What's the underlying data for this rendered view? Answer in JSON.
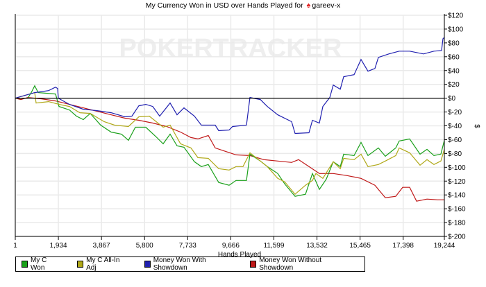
{
  "title": {
    "prefix": "My Currency Won in USD over Hands Played for",
    "player": "gareev-x",
    "icon": "pokerstars-spade-icon"
  },
  "watermark": "POKERTRACKER",
  "chart_data": {
    "type": "line",
    "title": "My Currency Won in USD over Hands Played for gareev-x",
    "xlabel": "Hands Played",
    "ylabel": "$",
    "xlim": [
      1,
      19244
    ],
    "ylim": [
      -200,
      120
    ],
    "x_ticks": [
      "1",
      "1,934",
      "3,867",
      "5,800",
      "7,733",
      "9,666",
      "11,599",
      "13,532",
      "15,465",
      "17,398",
      "19,244"
    ],
    "x_tick_values": [
      1,
      1934,
      3867,
      5800,
      7733,
      9666,
      11599,
      13532,
      15465,
      17398,
      19244
    ],
    "y_ticks": [
      "$120",
      "$100",
      "$80",
      "$60",
      "$40",
      "$20",
      "$0",
      "$-20",
      "$-40",
      "$-60",
      "$-80",
      "$-100",
      "$-120",
      "$-140",
      "$-160",
      "$-180",
      "$-200"
    ],
    "y_tick_values": [
      120,
      100,
      80,
      60,
      40,
      20,
      0,
      -20,
      -40,
      -60,
      -80,
      -100,
      -120,
      -140,
      -160,
      -180,
      -200
    ],
    "grid": true,
    "legend_position": "bottom-left",
    "series": [
      {
        "name": "My C Won",
        "color": "#1aa01a",
        "points": [
          [
            1,
            0
          ],
          [
            561,
            0
          ],
          [
            717,
            8
          ],
          [
            873,
            18
          ],
          [
            1029,
            8
          ],
          [
            1807,
            6
          ],
          [
            1963,
            -12
          ],
          [
            2430,
            -17
          ],
          [
            2741,
            -26
          ],
          [
            3053,
            -31
          ],
          [
            3364,
            -22
          ],
          [
            3831,
            -39
          ],
          [
            4298,
            -49
          ],
          [
            4765,
            -52
          ],
          [
            5077,
            -61
          ],
          [
            5388,
            -42
          ],
          [
            5856,
            -42
          ],
          [
            6323,
            -56
          ],
          [
            6634,
            -66
          ],
          [
            6945,
            -52
          ],
          [
            7257,
            -69
          ],
          [
            7568,
            -71
          ],
          [
            8035,
            -92
          ],
          [
            8347,
            -99
          ],
          [
            8658,
            -96
          ],
          [
            9125,
            -122
          ],
          [
            9592,
            -126
          ],
          [
            9903,
            -119
          ],
          [
            10370,
            -119
          ],
          [
            10526,
            -81
          ],
          [
            10993,
            -91
          ],
          [
            11305,
            -99
          ],
          [
            11772,
            -109
          ],
          [
            12083,
            -124
          ],
          [
            12550,
            -142
          ],
          [
            13018,
            -139
          ],
          [
            13329,
            -109
          ],
          [
            13640,
            -132
          ],
          [
            13952,
            -117
          ],
          [
            14263,
            -92
          ],
          [
            14575,
            -99
          ],
          [
            14730,
            -81
          ],
          [
            15197,
            -83
          ],
          [
            15509,
            -64
          ],
          [
            15820,
            -83
          ],
          [
            16287,
            -72
          ],
          [
            16598,
            -84
          ],
          [
            17065,
            -72
          ],
          [
            17221,
            -62
          ],
          [
            17688,
            -59
          ],
          [
            18155,
            -81
          ],
          [
            18466,
            -74
          ],
          [
            18778,
            -83
          ],
          [
            19089,
            -81
          ],
          [
            19244,
            -61
          ]
        ]
      },
      {
        "name": "My C All-In Adj",
        "color": "#b0a818",
        "points": [
          [
            1,
            0
          ],
          [
            873,
            8
          ],
          [
            935,
            -7
          ],
          [
            1496,
            -5
          ],
          [
            1963,
            -9
          ],
          [
            2430,
            -12
          ],
          [
            2897,
            -21
          ],
          [
            3364,
            -22
          ],
          [
            3987,
            -34
          ],
          [
            4454,
            -39
          ],
          [
            5077,
            -41
          ],
          [
            5544,
            -27
          ],
          [
            6011,
            -26
          ],
          [
            6634,
            -42
          ],
          [
            6945,
            -39
          ],
          [
            7412,
            -66
          ],
          [
            7879,
            -72
          ],
          [
            8191,
            -86
          ],
          [
            8658,
            -87
          ],
          [
            9125,
            -102
          ],
          [
            9592,
            -104
          ],
          [
            9903,
            -99
          ],
          [
            10215,
            -99
          ],
          [
            10526,
            -79
          ],
          [
            10993,
            -91
          ],
          [
            11305,
            -99
          ],
          [
            11772,
            -116
          ],
          [
            12083,
            -121
          ],
          [
            12550,
            -139
          ],
          [
            13018,
            -126
          ],
          [
            13329,
            -119
          ],
          [
            13485,
            -109
          ],
          [
            13796,
            -116
          ],
          [
            14263,
            -92
          ],
          [
            14575,
            -102
          ],
          [
            14730,
            -87
          ],
          [
            15197,
            -89
          ],
          [
            15509,
            -81
          ],
          [
            15820,
            -99
          ],
          [
            16287,
            -96
          ],
          [
            16598,
            -91
          ],
          [
            17065,
            -83
          ],
          [
            17221,
            -72
          ],
          [
            17688,
            -79
          ],
          [
            18155,
            -97
          ],
          [
            18466,
            -89
          ],
          [
            18778,
            -96
          ],
          [
            19089,
            -91
          ],
          [
            19244,
            -74
          ]
        ]
      },
      {
        "name": "Money Won With Showdown",
        "color": "#2020b0",
        "points": [
          [
            1,
            0
          ],
          [
            873,
            8
          ],
          [
            1496,
            11
          ],
          [
            1807,
            16
          ],
          [
            1900,
            14
          ],
          [
            1931,
            0
          ],
          [
            2430,
            -9
          ],
          [
            3053,
            -16
          ],
          [
            3675,
            -18
          ],
          [
            4298,
            -21
          ],
          [
            4921,
            -27
          ],
          [
            5233,
            -26
          ],
          [
            5544,
            -11
          ],
          [
            5856,
            -9
          ],
          [
            6167,
            -12
          ],
          [
            6478,
            -26
          ],
          [
            6945,
            -7
          ],
          [
            7257,
            -24
          ],
          [
            7568,
            -14
          ],
          [
            8035,
            -26
          ],
          [
            8347,
            -39
          ],
          [
            8969,
            -39
          ],
          [
            9125,
            -47
          ],
          [
            9592,
            -46
          ],
          [
            9748,
            -41
          ],
          [
            10370,
            -39
          ],
          [
            10526,
            1
          ],
          [
            10993,
            -2
          ],
          [
            11305,
            -12
          ],
          [
            11772,
            -24
          ],
          [
            12395,
            -34
          ],
          [
            12550,
            -51
          ],
          [
            13173,
            -50
          ],
          [
            13329,
            -32
          ],
          [
            13640,
            -36
          ],
          [
            13796,
            -12
          ],
          [
            14107,
            1
          ],
          [
            14263,
            19
          ],
          [
            14575,
            13
          ],
          [
            14730,
            31
          ],
          [
            15197,
            34
          ],
          [
            15509,
            56
          ],
          [
            15820,
            39
          ],
          [
            16131,
            43
          ],
          [
            16287,
            59
          ],
          [
            16754,
            64
          ],
          [
            17221,
            68
          ],
          [
            17688,
            68
          ],
          [
            18311,
            64
          ],
          [
            18778,
            68
          ],
          [
            19120,
            69
          ],
          [
            19182,
            86
          ],
          [
            19244,
            88
          ]
        ]
      },
      {
        "name": "Money Won Without Showdown",
        "color": "#c01818",
        "points": [
          [
            1,
            0
          ],
          [
            250,
            -2
          ],
          [
            561,
            1
          ],
          [
            1184,
            -1
          ],
          [
            1807,
            -4
          ],
          [
            2430,
            -9
          ],
          [
            3053,
            -14
          ],
          [
            3675,
            -19
          ],
          [
            4298,
            -24
          ],
          [
            4921,
            -29
          ],
          [
            5544,
            -32
          ],
          [
            6167,
            -36
          ],
          [
            6790,
            -41
          ],
          [
            7412,
            -49
          ],
          [
            7879,
            -57
          ],
          [
            8191,
            -59
          ],
          [
            8658,
            -54
          ],
          [
            8969,
            -72
          ],
          [
            9436,
            -77
          ],
          [
            9903,
            -82
          ],
          [
            10526,
            -83
          ],
          [
            11149,
            -89
          ],
          [
            11772,
            -91
          ],
          [
            12395,
            -93
          ],
          [
            12706,
            -89
          ],
          [
            13173,
            -99
          ],
          [
            13640,
            -109
          ],
          [
            14263,
            -109
          ],
          [
            14886,
            -112
          ],
          [
            15509,
            -116
          ],
          [
            16131,
            -126
          ],
          [
            16598,
            -144
          ],
          [
            17065,
            -142
          ],
          [
            17377,
            -129
          ],
          [
            17688,
            -129
          ],
          [
            17999,
            -149
          ],
          [
            18466,
            -146
          ],
          [
            18933,
            -147
          ],
          [
            19244,
            -147
          ]
        ]
      }
    ]
  }
}
